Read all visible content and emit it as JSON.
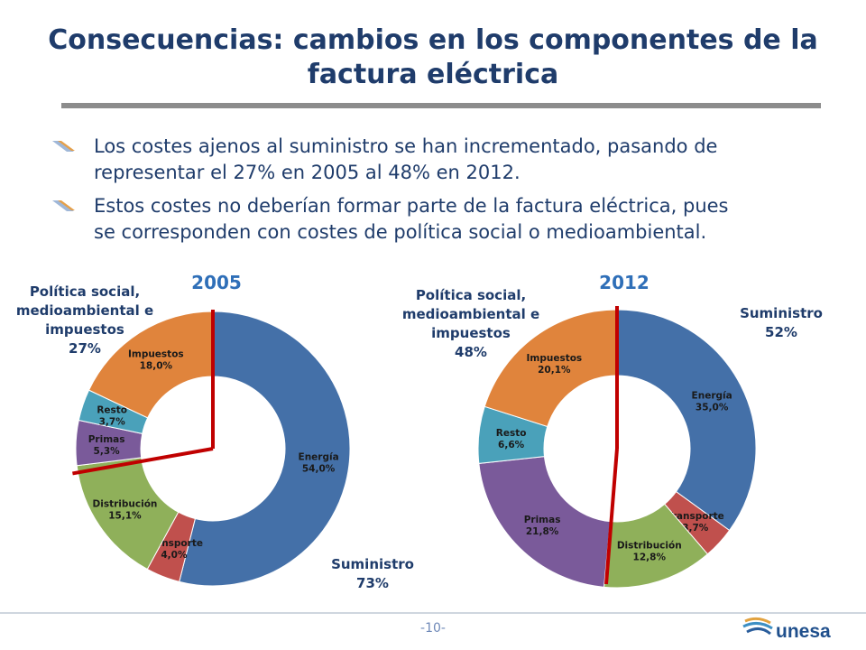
{
  "slide": {
    "title_line1": "Consecuencias: cambios en los componentes de la",
    "title_line2": "factura eléctrica",
    "bullets": [
      {
        "line1": "Los costes ajenos al suministro se han incrementado, pasando de",
        "line2": "representar el 27% en 2005 al 48% en 2012."
      },
      {
        "line1": "Estos costes no deberían formar parte de la factura eléctrica, pues",
        "line2": "se corresponden con costes de política social o medioambiental."
      }
    ],
    "page_number": "-10-",
    "logo_text": "unesa"
  },
  "colors": {
    "title": "#1f3c6b",
    "Energía": "#4470a8",
    "Transporte": "#c0504d",
    "Distribución": "#8fb05a",
    "Primas": "#7a5a9a",
    "Resto": "#4aa1ba",
    "Impuestos": "#e0843c",
    "divider": "#c00000",
    "year": "#2f6fb8"
  },
  "chart_data": [
    {
      "type": "pie",
      "title": "2005",
      "slices": [
        {
          "label": "Energía",
          "value": 54.0,
          "label_text": "54,0%"
        },
        {
          "label": "Transporte",
          "value": 4.0,
          "label_text": "4,0%"
        },
        {
          "label": "Distribución",
          "value": 15.1,
          "label_text": "15,1%"
        },
        {
          "label": "Primas",
          "value": 5.3,
          "label_text": "5,3%"
        },
        {
          "label": "Resto",
          "value": 3.7,
          "label_text": "3,7%"
        },
        {
          "label": "Impuestos",
          "value": 18.0,
          "label_text": "18,0%"
        }
      ],
      "annotations": [
        {
          "lines": [
            "Política social,",
            "medioambiental e",
            "impuestos"
          ],
          "value": "27%"
        },
        {
          "lines": [
            "Suministro"
          ],
          "value": "73%"
        }
      ]
    },
    {
      "type": "pie",
      "title": "2012",
      "slices": [
        {
          "label": "Energía",
          "value": 35.0,
          "label_text": "35,0%"
        },
        {
          "label": "Transporte",
          "value": 3.7,
          "label_text": "3,7%"
        },
        {
          "label": "Distribución",
          "value": 12.8,
          "label_text": "12,8%"
        },
        {
          "label": "Primas",
          "value": 21.8,
          "label_text": "21,8%"
        },
        {
          "label": "Resto",
          "value": 6.6,
          "label_text": "6,6%"
        },
        {
          "label": "Impuestos",
          "value": 20.1,
          "label_text": "20,1%"
        }
      ],
      "annotations": [
        {
          "lines": [
            "Política social,",
            "medioambiental e",
            "impuestos"
          ],
          "value": "48%"
        },
        {
          "lines": [
            "Suministro"
          ],
          "value": "52%"
        }
      ]
    }
  ]
}
